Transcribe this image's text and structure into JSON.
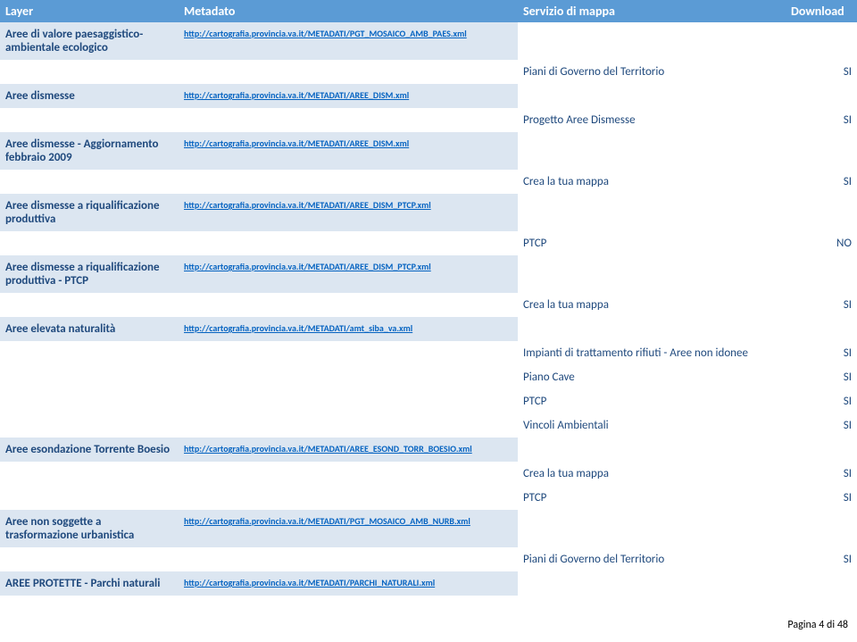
{
  "header": {
    "layer": "Layer",
    "metadato": "Metadato",
    "servizio": "Servizio di mappa",
    "download": "Download"
  },
  "rows": [
    {
      "layer": "Aree di valore paesaggistico-ambientale ecologico",
      "url": "http://cartografia.provincia.va.it/METADATI/PGT_MOSAICO_AMB_PAES.xml",
      "services": [
        {
          "name": "Piani di Governo del Territorio",
          "dl": "SI"
        }
      ]
    },
    {
      "layer": "Aree dismesse",
      "url": "http://cartografia.provincia.va.it/METADATI/AREE_DISM.xml",
      "services": [
        {
          "name": "Progetto Aree Dismesse",
          "dl": "SI"
        }
      ]
    },
    {
      "layer": "Aree dismesse - Aggiornamento febbraio 2009",
      "url": "http://cartografia.provincia.va.it/METADATI/AREE_DISM.xml",
      "services": [
        {
          "name": "Crea la tua mappa",
          "dl": "SI"
        }
      ]
    },
    {
      "layer": "Aree dismesse a riqualificazione produttiva",
      "url": "http://cartografia.provincia.va.it/METADATI/AREE_DISM_PTCP.xml",
      "services": [
        {
          "name": "PTCP",
          "dl": "NO"
        }
      ]
    },
    {
      "layer": "Aree dismesse a riqualificazione produttiva - PTCP",
      "url": "http://cartografia.provincia.va.it/METADATI/AREE_DISM_PTCP.xml",
      "services": [
        {
          "name": "Crea la tua mappa",
          "dl": "SI"
        }
      ]
    },
    {
      "layer": "Aree elevata naturalità",
      "url": "http://cartografia.provincia.va.it/METADATI/amt_siba_va.xml",
      "services": [
        {
          "name": "Impianti di trattamento rifiuti - Aree non idonee",
          "dl": "SI"
        },
        {
          "name": "Piano Cave",
          "dl": "SI"
        },
        {
          "name": "PTCP",
          "dl": "SI"
        },
        {
          "name": "Vincoli Ambientali",
          "dl": "SI"
        }
      ]
    },
    {
      "layer": "Aree esondazione Torrente Boesio",
      "url": "http://cartografia.provincia.va.it/METADATI/AREE_ESOND_TORR_BOESIO.xml",
      "services": [
        {
          "name": "Crea la tua mappa",
          "dl": "SI"
        },
        {
          "name": "PTCP",
          "dl": "SI"
        }
      ]
    },
    {
      "layer": "Aree non soggette a trasformazione urbanistica",
      "url": "http://cartografia.provincia.va.it/METADATI/PGT_MOSAICO_AMB_NURB.xml",
      "services": [
        {
          "name": "Piani di Governo del Territorio",
          "dl": "SI"
        }
      ]
    },
    {
      "layer": "AREE PROTETTE - Parchi naturali",
      "url": "http://cartografia.provincia.va.it/METADATI/PARCHI_NATURALI.xml",
      "services": []
    }
  ],
  "footer": "Pagina 4 di 48"
}
